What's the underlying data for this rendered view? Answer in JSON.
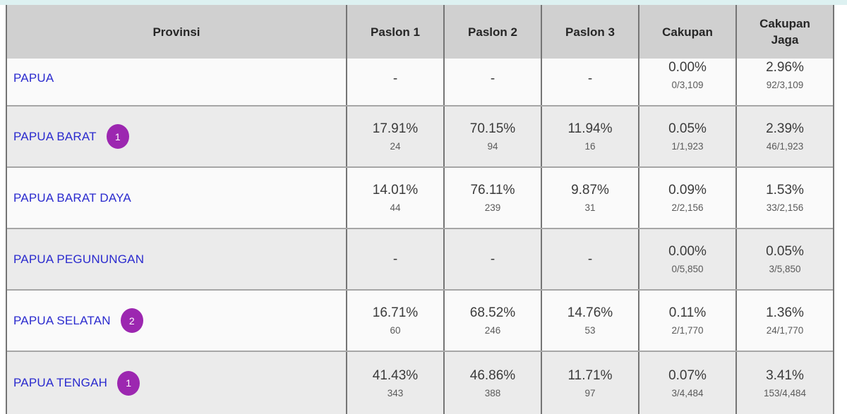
{
  "header": {
    "columns": [
      "Provinsi",
      "Paslon 1",
      "Paslon 2",
      "Paslon 3",
      "Cakupan",
      "Cakupan Jaga"
    ]
  },
  "rows": [
    {
      "province": "PAPUA",
      "badge": "",
      "clipped": true,
      "cells": [
        {
          "main": "-",
          "sub": ""
        },
        {
          "main": "-",
          "sub": ""
        },
        {
          "main": "-",
          "sub": ""
        },
        {
          "main": "0.00%",
          "sub": "0/3,109"
        },
        {
          "main": "2.96%",
          "sub": "92/3,109"
        }
      ]
    },
    {
      "province": "PAPUA BARAT",
      "badge": "1",
      "clipped": false,
      "cells": [
        {
          "main": "17.91%",
          "sub": "24"
        },
        {
          "main": "70.15%",
          "sub": "94"
        },
        {
          "main": "11.94%",
          "sub": "16"
        },
        {
          "main": "0.05%",
          "sub": "1/1,923"
        },
        {
          "main": "2.39%",
          "sub": "46/1,923"
        }
      ]
    },
    {
      "province": "PAPUA BARAT DAYA",
      "badge": "",
      "clipped": false,
      "cells": [
        {
          "main": "14.01%",
          "sub": "44"
        },
        {
          "main": "76.11%",
          "sub": "239"
        },
        {
          "main": "9.87%",
          "sub": "31"
        },
        {
          "main": "0.09%",
          "sub": "2/2,156"
        },
        {
          "main": "1.53%",
          "sub": "33/2,156"
        }
      ]
    },
    {
      "province": "PAPUA PEGUNUNGAN",
      "badge": "",
      "clipped": false,
      "cells": [
        {
          "main": "-",
          "sub": ""
        },
        {
          "main": "-",
          "sub": ""
        },
        {
          "main": "-",
          "sub": ""
        },
        {
          "main": "0.00%",
          "sub": "0/5,850"
        },
        {
          "main": "0.05%",
          "sub": "3/5,850"
        }
      ]
    },
    {
      "province": "PAPUA SELATAN",
      "badge": "2",
      "clipped": false,
      "cells": [
        {
          "main": "16.71%",
          "sub": "60"
        },
        {
          "main": "68.52%",
          "sub": "246"
        },
        {
          "main": "14.76%",
          "sub": "53"
        },
        {
          "main": "0.11%",
          "sub": "2/1,770"
        },
        {
          "main": "1.36%",
          "sub": "24/1,770"
        }
      ]
    },
    {
      "province": "PAPUA TENGAH",
      "badge": "1",
      "clipped": false,
      "cells": [
        {
          "main": "41.43%",
          "sub": "343"
        },
        {
          "main": "46.86%",
          "sub": "388"
        },
        {
          "main": "11.71%",
          "sub": "97"
        },
        {
          "main": "0.07%",
          "sub": "3/4,484"
        },
        {
          "main": "3.41%",
          "sub": "153/4,484"
        }
      ]
    }
  ],
  "colors": {
    "top_strip": "#ddf1f1",
    "header_bg": "#d0d0d0",
    "row_light": "#fafafa",
    "row_alt": "#ebebeb",
    "border_vertical": "#757575",
    "border_horizontal": "#a6a6a6",
    "link": "#2a2ace",
    "badge": "#9c27b0"
  }
}
